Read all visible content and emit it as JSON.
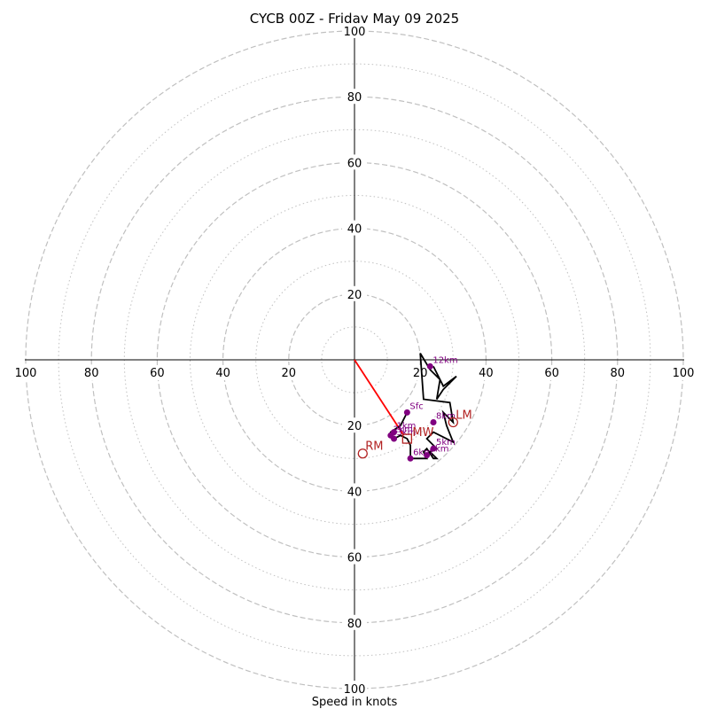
{
  "chart_data": {
    "type": "hodograph",
    "title": "CYCB 00Z - Friday May 09 2025",
    "xlabel": "Speed in knots",
    "range_knots": 100,
    "ring_dashed": [
      20,
      40,
      60,
      80,
      100
    ],
    "ring_dotted": [
      10,
      30,
      50,
      70,
      90
    ],
    "tick_labels": {
      "left": [
        "100",
        "80",
        "60",
        "40",
        "20"
      ],
      "right": [
        "20",
        "40",
        "60",
        "80",
        "100"
      ],
      "up": [
        "20",
        "40",
        "60",
        "80",
        "100"
      ],
      "down": [
        "20",
        "40",
        "60",
        "80",
        "100"
      ]
    },
    "colors": {
      "hodograph": "#000000",
      "heights": "#800080",
      "motion": "#b22222",
      "shear_line": "#ff0000",
      "rings": "#c0c0c0"
    },
    "hodograph_uv": [
      [
        16,
        -16
      ],
      [
        14,
        -20
      ],
      [
        11,
        -22
      ],
      [
        12,
        -24
      ],
      [
        14,
        -23
      ],
      [
        16,
        -24
      ],
      [
        17,
        -26
      ],
      [
        17,
        -30
      ],
      [
        22,
        -30
      ],
      [
        21,
        -28
      ],
      [
        22,
        -27
      ],
      [
        24,
        -30
      ],
      [
        25,
        -30
      ],
      [
        23,
        -28
      ],
      [
        25,
        -27
      ],
      [
        22,
        -24
      ],
      [
        24,
        -22
      ],
      [
        30,
        -25
      ],
      [
        28,
        -20
      ],
      [
        27,
        -16
      ],
      [
        30,
        -19
      ],
      [
        29,
        -13
      ],
      [
        21,
        -12
      ],
      [
        20,
        2
      ],
      [
        23,
        -3
      ],
      [
        26,
        -6
      ],
      [
        25,
        -12
      ],
      [
        27,
        -9
      ],
      [
        31,
        -5
      ],
      [
        27,
        -8
      ],
      [
        24,
        -2
      ]
    ],
    "height_markers": [
      {
        "label": "Sfc",
        "u": 16,
        "v": -16
      },
      {
        "label": "1km",
        "u": 12,
        "v": -22
      },
      {
        "label": "2km",
        "u": 11,
        "v": -23
      },
      {
        "label": "3km",
        "u": 12,
        "v": -24
      },
      {
        "label": "6km",
        "u": 17,
        "v": -30
      },
      {
        "label": "5km",
        "u": 24,
        "v": -27
      },
      {
        "label": "4km",
        "u": 22,
        "v": -29
      },
      {
        "label": "8km",
        "u": 24,
        "v": -19
      },
      {
        "label": "12km",
        "u": 23,
        "v": -2
      }
    ],
    "storm_motion": [
      {
        "label": "RM",
        "u": 2.5,
        "v": -28.5
      },
      {
        "label": "LM",
        "u": 30,
        "v": -19
      },
      {
        "label": "MW",
        "u": 16,
        "v": -24
      }
    ],
    "shear_line": {
      "from": [
        0,
        0
      ],
      "to": [
        15,
        -23
      ]
    }
  }
}
